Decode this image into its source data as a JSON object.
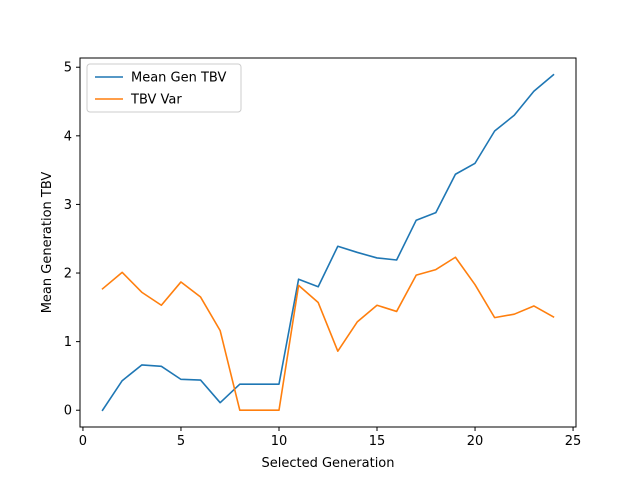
{
  "chart_data": {
    "type": "line",
    "title": "",
    "xlabel": "Selected Generation",
    "ylabel": "Mean Generation TBV",
    "xlim": [
      -0.15,
      25.15
    ],
    "ylim": [
      -0.2445,
      5.1345
    ],
    "xticks": [
      0,
      5,
      10,
      15,
      20,
      25
    ],
    "yticks": [
      0,
      1,
      2,
      3,
      4,
      5
    ],
    "grid": false,
    "legend_position": "upper-left",
    "x": [
      1,
      2,
      3,
      4,
      5,
      6,
      7,
      8,
      9,
      10,
      11,
      12,
      13,
      14,
      15,
      16,
      17,
      18,
      19,
      20,
      21,
      22,
      23,
      24
    ],
    "series": [
      {
        "name": "Mean Gen TBV",
        "color": "#1f77b4",
        "values": [
          0.0,
          0.43,
          0.66,
          0.64,
          0.45,
          0.44,
          0.11,
          0.38,
          0.38,
          0.38,
          1.91,
          1.8,
          2.39,
          2.3,
          2.22,
          2.19,
          2.77,
          2.88,
          3.44,
          3.6,
          4.07,
          4.3,
          4.65,
          4.89
        ]
      },
      {
        "name": "TBV Var",
        "color": "#ff7f0e",
        "values": [
          1.77,
          2.01,
          1.72,
          1.53,
          1.87,
          1.65,
          1.16,
          0.0,
          0.0,
          0.0,
          1.82,
          1.57,
          0.86,
          1.29,
          1.53,
          1.44,
          1.97,
          2.05,
          2.23,
          1.83,
          1.35,
          1.4,
          1.52,
          1.36
        ]
      }
    ]
  }
}
